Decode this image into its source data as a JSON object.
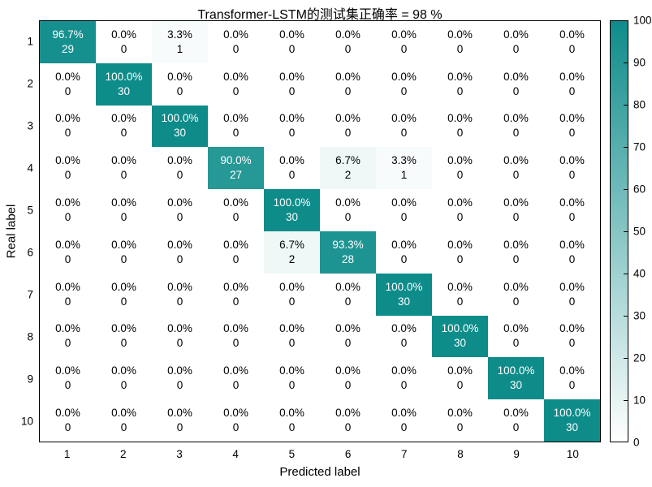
{
  "title": "Transformer-LSTM的测试集正确率 = 98 %",
  "axes": {
    "xlabel": "Predicted label",
    "ylabel": "Real label",
    "x_ticks": [
      "1",
      "2",
      "3",
      "4",
      "5",
      "6",
      "7",
      "8",
      "9",
      "10"
    ],
    "y_ticks": [
      "1",
      "2",
      "3",
      "4",
      "5",
      "6",
      "7",
      "8",
      "9",
      "10"
    ]
  },
  "colorbar": {
    "ticks": [
      "0",
      "10",
      "20",
      "30",
      "40",
      "50",
      "60",
      "70",
      "80",
      "90",
      "100"
    ],
    "min": 0,
    "max": 100
  },
  "colors": {
    "high": "#0e8c8a",
    "low": "#ffffff",
    "border": "#000000",
    "text_dark": "#000000",
    "text_light": "#ffffff"
  },
  "chart_data": {
    "type": "heatmap",
    "title": "Transformer-LSTM的测试集正确率 = 98 %",
    "xlabel": "Predicted label",
    "ylabel": "Real label",
    "x_categories": [
      "1",
      "2",
      "3",
      "4",
      "5",
      "6",
      "7",
      "8",
      "9",
      "10"
    ],
    "y_categories": [
      "1",
      "2",
      "3",
      "4",
      "5",
      "6",
      "7",
      "8",
      "9",
      "10"
    ],
    "value_range": [
      0,
      100
    ],
    "legend_position": "right-colorbar",
    "rows": [
      {
        "label": "1",
        "cells": [
          {
            "p": "96.7%",
            "n": "29",
            "v": 96.7
          },
          {
            "p": "0.0%",
            "n": "0",
            "v": 0
          },
          {
            "p": "3.3%",
            "n": "1",
            "v": 3.3
          },
          {
            "p": "0.0%",
            "n": "0",
            "v": 0
          },
          {
            "p": "0.0%",
            "n": "0",
            "v": 0
          },
          {
            "p": "0.0%",
            "n": "0",
            "v": 0
          },
          {
            "p": "0.0%",
            "n": "0",
            "v": 0
          },
          {
            "p": "0.0%",
            "n": "0",
            "v": 0
          },
          {
            "p": "0.0%",
            "n": "0",
            "v": 0
          },
          {
            "p": "0.0%",
            "n": "0",
            "v": 0
          }
        ]
      },
      {
        "label": "2",
        "cells": [
          {
            "p": "0.0%",
            "n": "0",
            "v": 0
          },
          {
            "p": "100.0%",
            "n": "30",
            "v": 100
          },
          {
            "p": "0.0%",
            "n": "0",
            "v": 0
          },
          {
            "p": "0.0%",
            "n": "0",
            "v": 0
          },
          {
            "p": "0.0%",
            "n": "0",
            "v": 0
          },
          {
            "p": "0.0%",
            "n": "0",
            "v": 0
          },
          {
            "p": "0.0%",
            "n": "0",
            "v": 0
          },
          {
            "p": "0.0%",
            "n": "0",
            "v": 0
          },
          {
            "p": "0.0%",
            "n": "0",
            "v": 0
          },
          {
            "p": "0.0%",
            "n": "0",
            "v": 0
          }
        ]
      },
      {
        "label": "3",
        "cells": [
          {
            "p": "0.0%",
            "n": "0",
            "v": 0
          },
          {
            "p": "0.0%",
            "n": "0",
            "v": 0
          },
          {
            "p": "100.0%",
            "n": "30",
            "v": 100
          },
          {
            "p": "0.0%",
            "n": "0",
            "v": 0
          },
          {
            "p": "0.0%",
            "n": "0",
            "v": 0
          },
          {
            "p": "0.0%",
            "n": "0",
            "v": 0
          },
          {
            "p": "0.0%",
            "n": "0",
            "v": 0
          },
          {
            "p": "0.0%",
            "n": "0",
            "v": 0
          },
          {
            "p": "0.0%",
            "n": "0",
            "v": 0
          },
          {
            "p": "0.0%",
            "n": "0",
            "v": 0
          }
        ]
      },
      {
        "label": "4",
        "cells": [
          {
            "p": "0.0%",
            "n": "0",
            "v": 0
          },
          {
            "p": "0.0%",
            "n": "0",
            "v": 0
          },
          {
            "p": "0.0%",
            "n": "0",
            "v": 0
          },
          {
            "p": "90.0%",
            "n": "27",
            "v": 90
          },
          {
            "p": "0.0%",
            "n": "0",
            "v": 0
          },
          {
            "p": "6.7%",
            "n": "2",
            "v": 6.7
          },
          {
            "p": "3.3%",
            "n": "1",
            "v": 3.3
          },
          {
            "p": "0.0%",
            "n": "0",
            "v": 0
          },
          {
            "p": "0.0%",
            "n": "0",
            "v": 0
          },
          {
            "p": "0.0%",
            "n": "0",
            "v": 0
          }
        ]
      },
      {
        "label": "5",
        "cells": [
          {
            "p": "0.0%",
            "n": "0",
            "v": 0
          },
          {
            "p": "0.0%",
            "n": "0",
            "v": 0
          },
          {
            "p": "0.0%",
            "n": "0",
            "v": 0
          },
          {
            "p": "0.0%",
            "n": "0",
            "v": 0
          },
          {
            "p": "100.0%",
            "n": "30",
            "v": 100
          },
          {
            "p": "0.0%",
            "n": "0",
            "v": 0
          },
          {
            "p": "0.0%",
            "n": "0",
            "v": 0
          },
          {
            "p": "0.0%",
            "n": "0",
            "v": 0
          },
          {
            "p": "0.0%",
            "n": "0",
            "v": 0
          },
          {
            "p": "0.0%",
            "n": "0",
            "v": 0
          }
        ]
      },
      {
        "label": "6",
        "cells": [
          {
            "p": "0.0%",
            "n": "0",
            "v": 0
          },
          {
            "p": "0.0%",
            "n": "0",
            "v": 0
          },
          {
            "p": "0.0%",
            "n": "0",
            "v": 0
          },
          {
            "p": "0.0%",
            "n": "0",
            "v": 0
          },
          {
            "p": "6.7%",
            "n": "2",
            "v": 6.7
          },
          {
            "p": "93.3%",
            "n": "28",
            "v": 93.3
          },
          {
            "p": "0.0%",
            "n": "0",
            "v": 0
          },
          {
            "p": "0.0%",
            "n": "0",
            "v": 0
          },
          {
            "p": "0.0%",
            "n": "0",
            "v": 0
          },
          {
            "p": "0.0%",
            "n": "0",
            "v": 0
          }
        ]
      },
      {
        "label": "7",
        "cells": [
          {
            "p": "0.0%",
            "n": "0",
            "v": 0
          },
          {
            "p": "0.0%",
            "n": "0",
            "v": 0
          },
          {
            "p": "0.0%",
            "n": "0",
            "v": 0
          },
          {
            "p": "0.0%",
            "n": "0",
            "v": 0
          },
          {
            "p": "0.0%",
            "n": "0",
            "v": 0
          },
          {
            "p": "0.0%",
            "n": "0",
            "v": 0
          },
          {
            "p": "100.0%",
            "n": "30",
            "v": 100
          },
          {
            "p": "0.0%",
            "n": "0",
            "v": 0
          },
          {
            "p": "0.0%",
            "n": "0",
            "v": 0
          },
          {
            "p": "0.0%",
            "n": "0",
            "v": 0
          }
        ]
      },
      {
        "label": "8",
        "cells": [
          {
            "p": "0.0%",
            "n": "0",
            "v": 0
          },
          {
            "p": "0.0%",
            "n": "0",
            "v": 0
          },
          {
            "p": "0.0%",
            "n": "0",
            "v": 0
          },
          {
            "p": "0.0%",
            "n": "0",
            "v": 0
          },
          {
            "p": "0.0%",
            "n": "0",
            "v": 0
          },
          {
            "p": "0.0%",
            "n": "0",
            "v": 0
          },
          {
            "p": "0.0%",
            "n": "0",
            "v": 0
          },
          {
            "p": "100.0%",
            "n": "30",
            "v": 100
          },
          {
            "p": "0.0%",
            "n": "0",
            "v": 0
          },
          {
            "p": "0.0%",
            "n": "0",
            "v": 0
          }
        ]
      },
      {
        "label": "9",
        "cells": [
          {
            "p": "0.0%",
            "n": "0",
            "v": 0
          },
          {
            "p": "0.0%",
            "n": "0",
            "v": 0
          },
          {
            "p": "0.0%",
            "n": "0",
            "v": 0
          },
          {
            "p": "0.0%",
            "n": "0",
            "v": 0
          },
          {
            "p": "0.0%",
            "n": "0",
            "v": 0
          },
          {
            "p": "0.0%",
            "n": "0",
            "v": 0
          },
          {
            "p": "0.0%",
            "n": "0",
            "v": 0
          },
          {
            "p": "0.0%",
            "n": "0",
            "v": 0
          },
          {
            "p": "100.0%",
            "n": "30",
            "v": 100
          },
          {
            "p": "0.0%",
            "n": "0",
            "v": 0
          }
        ]
      },
      {
        "label": "10",
        "cells": [
          {
            "p": "0.0%",
            "n": "0",
            "v": 0
          },
          {
            "p": "0.0%",
            "n": "0",
            "v": 0
          },
          {
            "p": "0.0%",
            "n": "0",
            "v": 0
          },
          {
            "p": "0.0%",
            "n": "0",
            "v": 0
          },
          {
            "p": "0.0%",
            "n": "0",
            "v": 0
          },
          {
            "p": "0.0%",
            "n": "0",
            "v": 0
          },
          {
            "p": "0.0%",
            "n": "0",
            "v": 0
          },
          {
            "p": "0.0%",
            "n": "0",
            "v": 0
          },
          {
            "p": "0.0%",
            "n": "0",
            "v": 0
          },
          {
            "p": "100.0%",
            "n": "30",
            "v": 100
          }
        ]
      }
    ]
  }
}
